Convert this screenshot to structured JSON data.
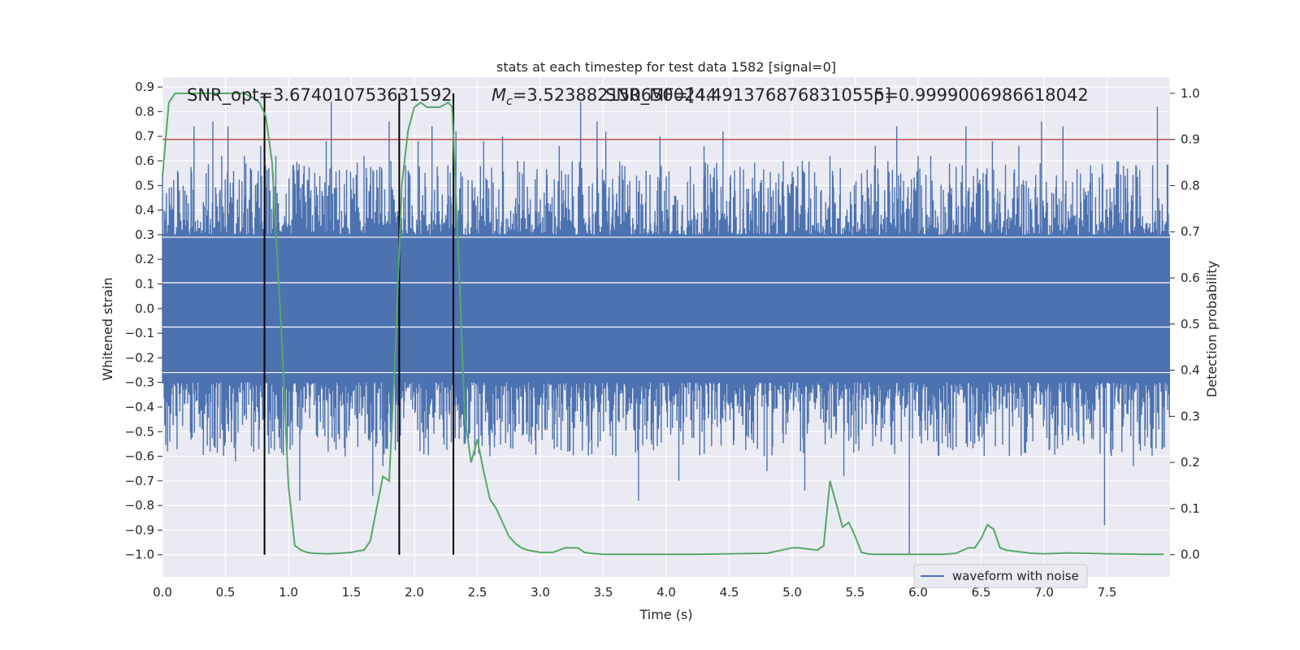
{
  "chart_data": {
    "type": "line",
    "title": "stats at each timestep for test data 1582 [signal=0]",
    "xlabel": "Time (s)",
    "ylabel": "Whitened strain",
    "y2label": "Detection probability",
    "xlim": [
      0,
      8
    ],
    "ylim": [
      -1.09,
      0.94
    ],
    "y2lim": [
      -0.048,
      1.035
    ],
    "x_ticks": [
      "0.0",
      "0.5",
      "1.0",
      "1.5",
      "2.0",
      "2.5",
      "3.0",
      "3.5",
      "4.0",
      "4.5",
      "5.0",
      "5.5",
      "6.0",
      "6.5",
      "7.0",
      "7.5"
    ],
    "y_ticks": [
      "0.9",
      "0.8",
      "0.7",
      "0.6",
      "0.5",
      "0.4",
      "0.3",
      "0.2",
      "0.1",
      "0.0",
      "-0.1",
      "-0.2",
      "-0.3",
      "-0.4",
      "-0.5",
      "-0.6",
      "-0.7",
      "-0.8",
      "-0.9",
      "-1.0"
    ],
    "y2_ticks": [
      "1.0",
      "0.9",
      "0.8",
      "0.7",
      "0.6",
      "0.5",
      "0.4",
      "0.3",
      "0.2",
      "0.1",
      "0.0"
    ],
    "grid": true,
    "legend": {
      "position": "lower-right",
      "entries": [
        "waveform with noise"
      ]
    },
    "annotations": {
      "snr_opt": "SNR_opt=3.674010753631592",
      "mc": "=3.5238821506500244",
      "mc_symbol": "M",
      "mc_sub": "c",
      "snr_mf": "SNR_MF=[4.4913768768310555]",
      "p": "p=0.9999006986618042"
    },
    "colors": {
      "waveform": "#4c72b0",
      "probability": "#55a868",
      "threshold": "#c44e52",
      "markers": "#000000",
      "background": "#eaeaf2"
    },
    "threshold_probability": 0.9,
    "vertical_markers": [
      0.81,
      1.88,
      2.31
    ],
    "waveform": {
      "name": "waveform with noise",
      "description_band": [
        -0.3,
        0.3
      ],
      "spikes": [
        [
          0.04,
          -0.58
        ],
        [
          0.12,
          0.56
        ],
        [
          0.25,
          0.74
        ],
        [
          0.4,
          0.76
        ],
        [
          0.47,
          0.62
        ],
        [
          0.52,
          0.74
        ],
        [
          0.58,
          -0.62
        ],
        [
          0.65,
          0.62
        ],
        [
          0.78,
          0.66
        ],
        [
          0.9,
          0.62
        ],
        [
          1.09,
          -0.78
        ],
        [
          1.3,
          0.68
        ],
        [
          1.34,
          0.84
        ],
        [
          1.45,
          -0.6
        ],
        [
          1.6,
          0.62
        ],
        [
          1.67,
          -0.76
        ],
        [
          1.75,
          -0.64
        ],
        [
          1.8,
          0.76
        ],
        [
          2.03,
          0.68
        ],
        [
          2.14,
          0.74
        ],
        [
          2.33,
          0.72
        ],
        [
          2.55,
          0.68
        ],
        [
          2.6,
          -0.6
        ],
        [
          2.7,
          0.7
        ],
        [
          2.82,
          0.6
        ],
        [
          3.15,
          0.66
        ],
        [
          3.32,
          0.84
        ],
        [
          3.45,
          0.76
        ],
        [
          3.52,
          0.72
        ],
        [
          3.6,
          -0.6
        ],
        [
          3.78,
          -0.78
        ],
        [
          3.95,
          0.7
        ],
        [
          4.1,
          -0.7
        ],
        [
          4.3,
          0.66
        ],
        [
          4.45,
          0.72
        ],
        [
          4.8,
          -0.66
        ],
        [
          5.08,
          0.6
        ],
        [
          5.1,
          -0.74
        ],
        [
          5.3,
          0.62
        ],
        [
          5.41,
          -0.68
        ],
        [
          5.66,
          0.66
        ],
        [
          5.83,
          0.74
        ],
        [
          5.93,
          -1.0
        ],
        [
          6.0,
          0.62
        ],
        [
          6.1,
          0.62
        ],
        [
          6.38,
          0.74
        ],
        [
          6.59,
          0.68
        ],
        [
          6.8,
          0.66
        ],
        [
          6.98,
          0.76
        ],
        [
          7.15,
          0.74
        ],
        [
          7.48,
          -0.88
        ],
        [
          7.58,
          0.6
        ],
        [
          7.71,
          -0.64
        ],
        [
          7.9,
          0.82
        ]
      ]
    },
    "probability": {
      "x": [
        0.0,
        0.05,
        0.1,
        0.15,
        0.25,
        0.35,
        0.45,
        0.55,
        0.65,
        0.72,
        0.77,
        0.82,
        0.87,
        0.9,
        0.95,
        1.0,
        1.05,
        1.1,
        1.15,
        1.2,
        1.3,
        1.4,
        1.5,
        1.55,
        1.6,
        1.65,
        1.7,
        1.75,
        1.8,
        1.85,
        1.9,
        1.95,
        2.0,
        2.05,
        2.1,
        2.2,
        2.27,
        2.3,
        2.35,
        2.4,
        2.45,
        2.5,
        2.55,
        2.6,
        2.65,
        2.7,
        2.75,
        2.8,
        2.85,
        2.9,
        3.0,
        3.1,
        3.2,
        3.25,
        3.3,
        3.35,
        3.4,
        3.45,
        3.5,
        3.6,
        3.8,
        4.0,
        4.2,
        4.5,
        4.8,
        5.0,
        5.05,
        5.2,
        5.25,
        5.3,
        5.35,
        5.4,
        5.45,
        5.5,
        5.55,
        5.6,
        5.65,
        5.7,
        5.8,
        6.0,
        6.2,
        6.3,
        6.4,
        6.45,
        6.5,
        6.55,
        6.6,
        6.65,
        6.7,
        6.9,
        7.0,
        7.2,
        7.5,
        7.8,
        7.95
      ],
      "y": [
        0.82,
        0.98,
        1.0,
        1.0,
        1.0,
        1.0,
        1.0,
        1.0,
        1.0,
        0.99,
        0.98,
        0.95,
        0.85,
        0.7,
        0.45,
        0.15,
        0.02,
        0.01,
        0.005,
        0.003,
        0.002,
        0.003,
        0.005,
        0.008,
        0.01,
        0.03,
        0.1,
        0.17,
        0.16,
        0.45,
        0.8,
        0.92,
        0.97,
        0.98,
        0.97,
        0.97,
        0.98,
        0.97,
        0.65,
        0.3,
        0.2,
        0.25,
        0.18,
        0.12,
        0.1,
        0.07,
        0.04,
        0.025,
        0.015,
        0.01,
        0.005,
        0.005,
        0.015,
        0.015,
        0.015,
        0.005,
        0.003,
        0.002,
        0.001,
        0.001,
        0.001,
        0.001,
        0.001,
        0.002,
        0.003,
        0.015,
        0.015,
        0.01,
        0.02,
        0.16,
        0.11,
        0.06,
        0.07,
        0.04,
        0.005,
        0.002,
        0.001,
        0.001,
        0.001,
        0.001,
        0.001,
        0.003,
        0.015,
        0.015,
        0.035,
        0.065,
        0.055,
        0.015,
        0.01,
        0.003,
        0.002,
        0.004,
        0.002,
        0.001,
        0.001
      ]
    }
  }
}
